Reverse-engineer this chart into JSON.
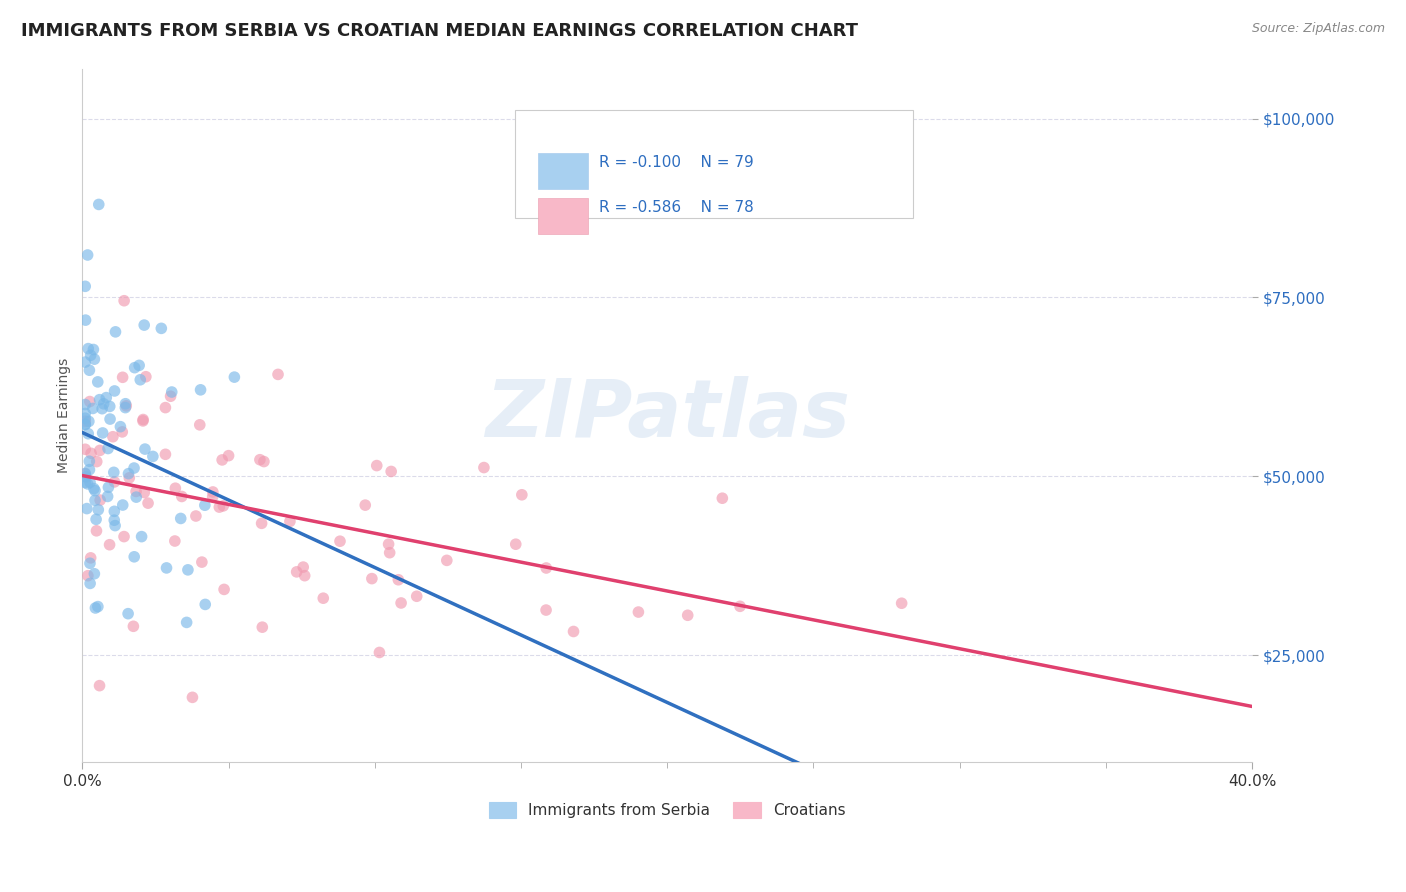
{
  "title": "IMMIGRANTS FROM SERBIA VS CROATIAN MEDIAN EARNINGS CORRELATION CHART",
  "source_text": "Source: ZipAtlas.com",
  "ylabel": "Median Earnings",
  "xlim": [
    0.0,
    0.4
  ],
  "ylim": [
    10000,
    107000
  ],
  "yticks": [
    25000,
    50000,
    75000,
    100000
  ],
  "ytick_labels": [
    "$25,000",
    "$50,000",
    "$75,000",
    "$100,000"
  ],
  "xticks": [
    0.0,
    0.4
  ],
  "serbia_color": "#7ab8e8",
  "croatia_color": "#f09ab0",
  "serbia_line_color": "#3070c0",
  "croatia_line_color": "#e0406e",
  "serbia_legend_color": "#a8d0f0",
  "croatia_legend_color": "#f8b8c8",
  "background_color": "#ffffff",
  "plot_bg_color": "#ffffff",
  "grid_color": "#d8d8e8",
  "watermark_text": "ZIPatlas",
  "legend_r_serbia": "R = -0.100",
  "legend_n_serbia": "N = 79",
  "legend_r_croatia": "R = -0.586",
  "legend_n_croatia": "N = 78",
  "legend_label_serbia": "Immigrants from Serbia",
  "legend_label_croatia": "Croatians"
}
